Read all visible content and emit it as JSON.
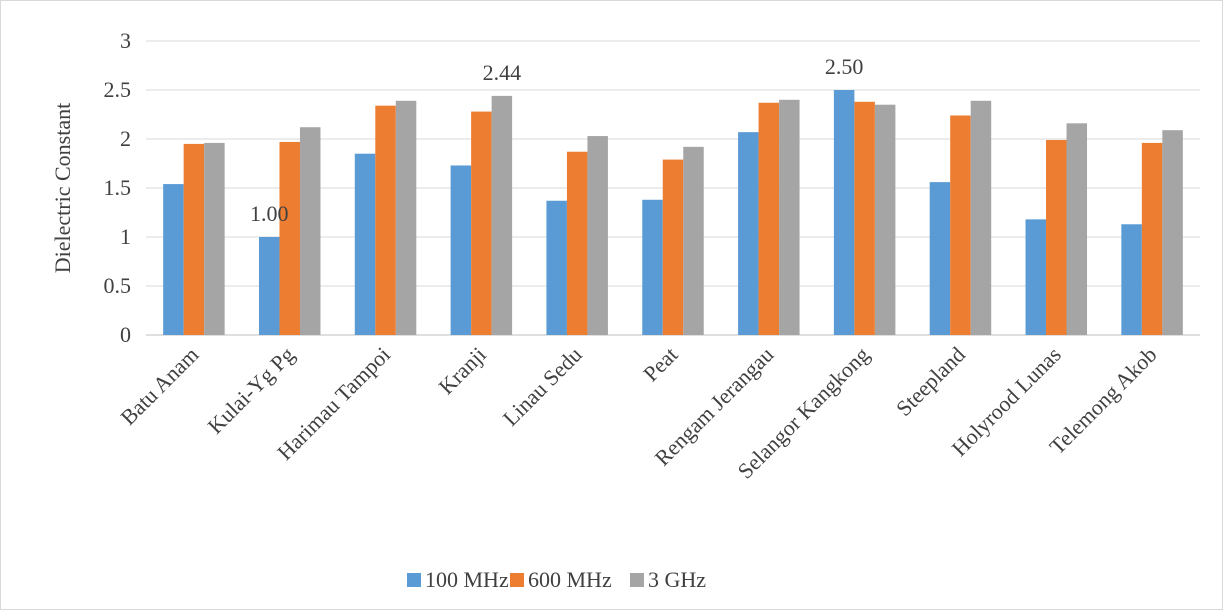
{
  "chart_data": {
    "type": "bar",
    "title": "",
    "xlabel": "",
    "ylabel": "Dielectric Constant",
    "ylim": [
      0,
      3
    ],
    "yticks": [
      "0",
      "0.5",
      "1",
      "1.5",
      "2",
      "2.5",
      "3"
    ],
    "grid": true,
    "legend_position": "bottom",
    "categories": [
      "Batu Anam",
      "Kulai-Yg Pg",
      "Harimau Tampoi",
      "Kranji",
      "Linau Sedu",
      "Peat",
      "Rengam Jerangau",
      "Selangor Kangkong",
      "Steepland",
      "Holyrood Lunas",
      "Telemong Akob"
    ],
    "series": [
      {
        "name": "100 MHz",
        "color": "#5b9bd5",
        "values": [
          1.54,
          1.0,
          1.85,
          1.73,
          1.37,
          1.38,
          2.07,
          2.5,
          1.56,
          1.18,
          1.13
        ]
      },
      {
        "name": "600 MHz",
        "color": "#ed7d31",
        "values": [
          1.95,
          1.97,
          2.34,
          2.28,
          1.87,
          1.79,
          2.37,
          2.38,
          2.24,
          1.99,
          1.96
        ]
      },
      {
        "name": "3 GHz",
        "color": "#a5a5a5",
        "values": [
          1.96,
          2.12,
          2.39,
          2.44,
          2.03,
          1.92,
          2.4,
          2.35,
          2.39,
          2.16,
          2.09
        ]
      }
    ],
    "data_labels": [
      {
        "category_index": 1,
        "series_index": 0,
        "text": "1.00"
      },
      {
        "category_index": 3,
        "series_index": 2,
        "text": "2.44"
      },
      {
        "category_index": 7,
        "series_index": 0,
        "text": "2.50"
      }
    ]
  }
}
